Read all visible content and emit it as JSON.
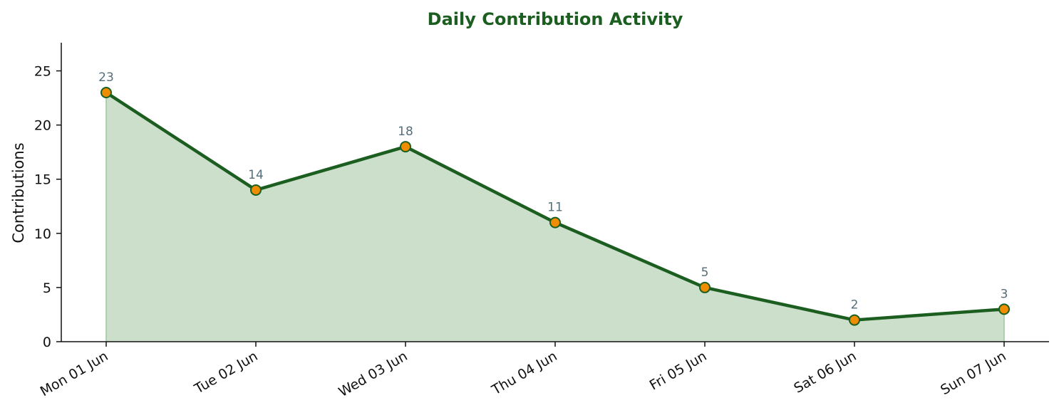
{
  "chart_data": {
    "type": "area",
    "title": "Daily Contribution Activity",
    "xlabel": "",
    "ylabel": "Contributions",
    "categories": [
      "Mon 01 Jun",
      "Tue 02 Jun",
      "Wed 03 Jun",
      "Thu 04 Jun",
      "Fri 05 Jun",
      "Sat 06 Jun",
      "Sun 07 Jun"
    ],
    "values": [
      23,
      14,
      18,
      11,
      5,
      2,
      3
    ],
    "data_labels": [
      "23",
      "14",
      "18",
      "11",
      "5",
      "2",
      "3"
    ],
    "ylim": [
      0,
      27.6
    ],
    "yticks": [
      0,
      5,
      10,
      15,
      20,
      25
    ],
    "ytick_labels": [
      "0",
      "5",
      "10",
      "15",
      "20",
      "25"
    ],
    "grid": false,
    "legend": "none",
    "colors": {
      "title": "#1b5e20",
      "line": "#1b5e20",
      "fill": "#cbdfcb",
      "marker": "#ef8c00",
      "marker_edge": "#1b5e20",
      "data_label": "#546e7a",
      "axis": "#111111"
    }
  }
}
